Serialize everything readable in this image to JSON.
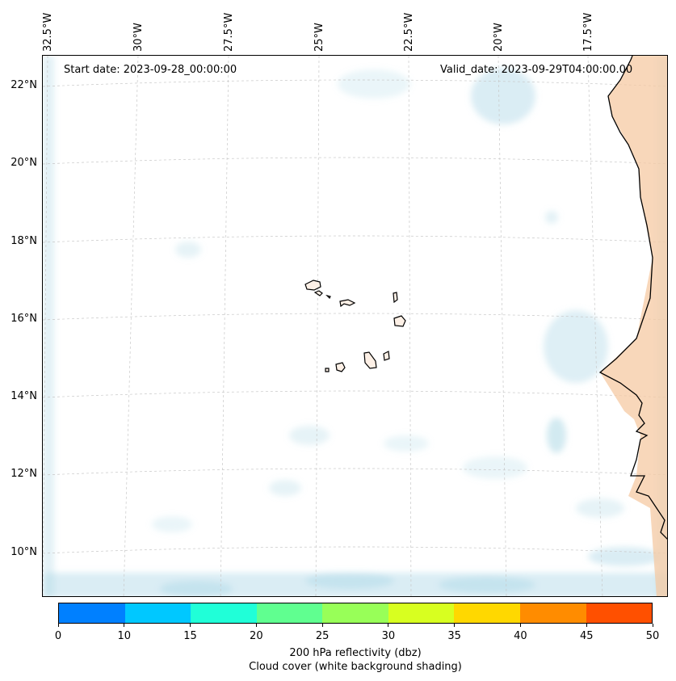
{
  "annotations": {
    "start_date": "Start date: 2023-09-28_00:00:00",
    "valid_date": "Valid_date: 2023-09-29T04:00:00.00"
  },
  "lon_labels": [
    "32.5°W",
    "30°W",
    "27.5°W",
    "25°W",
    "22.5°W",
    "20°W",
    "17.5°W"
  ],
  "lat_labels": [
    "22°N",
    "20°N",
    "18°N",
    "16°N",
    "14°N",
    "12°N",
    "10°N"
  ],
  "colorbar": {
    "ticks": [
      "0",
      "10",
      "15",
      "20",
      "25",
      "30",
      "35",
      "40",
      "45",
      "50"
    ],
    "colors": [
      "#0080ff",
      "#00c8ff",
      "#20ffd8",
      "#60ff90",
      "#98ff58",
      "#d8ff20",
      "#ffd800",
      "#ff8c00",
      "#ff5000"
    ],
    "label_line1": "200 hPa reflectivity (dbz)",
    "label_line2": "Cloud cover (white background shading)"
  },
  "colors": {
    "cloud": "#add8e6",
    "land_warm": "#f5c9a3",
    "coast": "#000000",
    "grid": "#c8c8c8"
  }
}
